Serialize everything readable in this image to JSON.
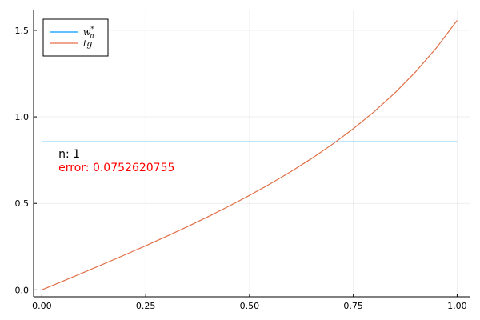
{
  "chart_data": {
    "type": "line",
    "xlim": [
      -0.02,
      1.03
    ],
    "ylim": [
      -0.04,
      1.62
    ],
    "x_ticks": [
      0.0,
      0.25,
      0.5,
      0.75,
      1.0
    ],
    "x_tick_labels": [
      "0.00",
      "0.25",
      "0.50",
      "0.75",
      "1.00"
    ],
    "y_ticks": [
      0.0,
      0.5,
      1.0,
      1.5
    ],
    "y_tick_labels": [
      "0.0",
      "0.5",
      "1.0",
      "1.5"
    ],
    "grid": true,
    "legend_placement": "top-left",
    "series": [
      {
        "name": "w_n*",
        "label_base": "w",
        "label_sub": "n",
        "label_sup": "*",
        "color": "#009af9",
        "x": [
          0.0,
          1.0
        ],
        "y": [
          0.8552,
          0.8552
        ]
      },
      {
        "name": "tg",
        "label_base": "tg",
        "color": "#e26f46",
        "x": [
          0.0,
          0.05,
          0.1,
          0.15,
          0.2,
          0.25,
          0.3,
          0.35,
          0.4,
          0.45,
          0.5,
          0.55,
          0.6,
          0.65,
          0.7,
          0.75,
          0.8,
          0.85,
          0.9,
          0.95,
          1.0
        ],
        "y": [
          0.0,
          0.05,
          0.1003,
          0.1511,
          0.2027,
          0.2553,
          0.3093,
          0.365,
          0.4228,
          0.4831,
          0.5463,
          0.6131,
          0.6841,
          0.7602,
          0.8423,
          0.9316,
          1.0296,
          1.1383,
          1.2602,
          1.3984,
          1.5574
        ]
      }
    ],
    "annotations": [
      {
        "text": "n: 1",
        "color": "#000000",
        "x": 0.04,
        "y": 0.765
      },
      {
        "text": "error: 0.0752620755",
        "color": "#ff0000",
        "x": 0.04,
        "y": 0.685
      }
    ]
  }
}
